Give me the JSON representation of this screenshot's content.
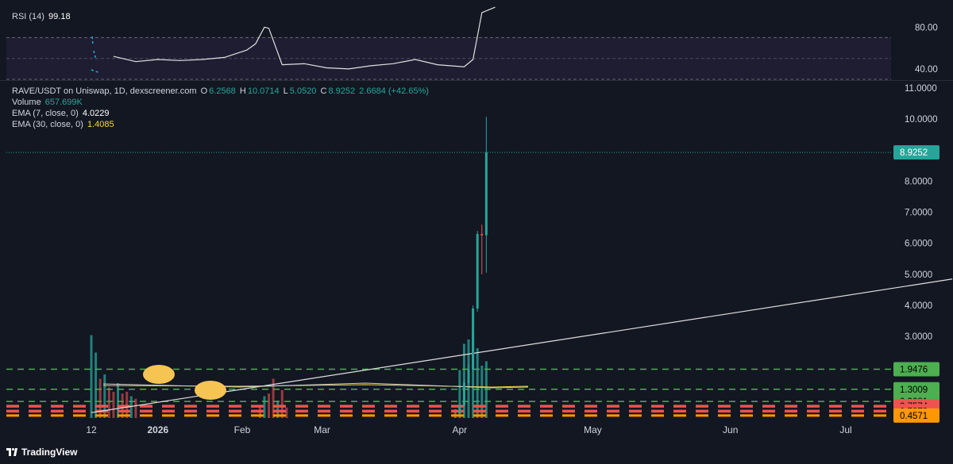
{
  "rsi_legend": {
    "label": "RSI (14)",
    "value": "99.18"
  },
  "main_legend": {
    "symbol": "RAVE/USDT on Uniswap, 1D, dexscreener.com",
    "o_key": "O",
    "o": "6.2568",
    "h_key": "H",
    "h": "10.0714",
    "l_key": "L",
    "l": "5.0520",
    "c_key": "C",
    "c": "8.9252",
    "change": "2.6684 (+42.65%)"
  },
  "volume_legend": {
    "label": "Volume",
    "value": "657.699K"
  },
  "ema7_legend": {
    "label": "EMA (7, close, 0)",
    "value": "4.0229"
  },
  "ema30_legend": {
    "label": "EMA (30, close, 0)",
    "value": "1.4085"
  },
  "chart_data": [
    {
      "type": "line",
      "name": "RSI (14)",
      "ylim": [
        30,
        100
      ],
      "y_ticks": [
        "80.00",
        "40.00"
      ],
      "bands": [
        70,
        50,
        30
      ],
      "x": [
        "2026-01-17",
        "2026-01-22",
        "2026-01-27",
        "2026-02-01",
        "2026-02-06",
        "2026-02-11",
        "2026-02-16",
        "2026-02-18",
        "2026-02-20",
        "2026-02-21",
        "2026-02-24",
        "2026-03-01",
        "2026-03-06",
        "2026-03-11",
        "2026-03-16",
        "2026-03-21",
        "2026-03-26",
        "2026-03-31",
        "2026-04-06",
        "2026-04-08",
        "2026-04-10",
        "2026-04-13"
      ],
      "values": [
        52,
        47,
        49,
        48,
        49,
        51,
        58,
        64,
        80,
        79,
        44,
        45,
        41,
        40,
        43,
        45,
        49,
        44,
        42,
        49,
        94,
        99.18
      ]
    },
    {
      "type": "candlestick",
      "name": "RAVE/USDT",
      "ylim": [
        0.3,
        11.2
      ],
      "y_ticks": [
        "11.0000",
        "10.0000",
        "9.0000",
        "8.0000",
        "7.0000",
        "6.0000",
        "5.0000",
        "4.0000",
        "3.0000"
      ],
      "x_ticks": [
        "12",
        "2026",
        "Feb",
        "Mar",
        "Apr",
        "May",
        "Jun",
        "Jul"
      ],
      "candles": [
        {
          "date": "2026-04-05",
          "open": 0.52,
          "high": 0.8,
          "low": 0.5,
          "close": 0.78
        },
        {
          "date": "2026-04-06",
          "open": 0.78,
          "high": 1.6,
          "low": 0.75,
          "close": 1.5
        },
        {
          "date": "2026-04-07",
          "open": 1.5,
          "high": 2.1,
          "low": 1.4,
          "close": 1.95
        },
        {
          "date": "2026-04-08",
          "open": 1.95,
          "high": 4.0,
          "low": 1.9,
          "close": 3.9
        },
        {
          "date": "2026-04-09",
          "open": 3.9,
          "high": 6.4,
          "low": 3.8,
          "close": 6.3
        },
        {
          "date": "2026-04-10",
          "open": 6.3,
          "high": 6.6,
          "low": 5.0,
          "close": 6.2568
        },
        {
          "date": "2026-04-11",
          "open": 6.2568,
          "high": 10.0714,
          "low": 5.052,
          "close": 8.9252
        }
      ],
      "trendline": {
        "from": {
          "date": "2026-01-12",
          "value": 0.55
        },
        "to": {
          "date": "2026-07-25",
          "value": 4.85
        }
      },
      "price_levels": [
        {
          "label": "8.9252",
          "value": 8.9252,
          "style": "current",
          "color": "#26a69a"
        },
        {
          "label": "1.9476",
          "value": 1.9476,
          "style": "dashed",
          "color": "#4caf50"
        },
        {
          "label": "1.3009",
          "value": 1.3009,
          "style": "dashed",
          "color": "#4caf50"
        },
        {
          "label": "0.9081",
          "value": 0.9081,
          "style": "dashed",
          "color": "#4caf50"
        },
        {
          "label": "0.7574",
          "value": 0.7574,
          "style": "block",
          "color": "#ef5350"
        },
        {
          "label": "0.5973",
          "value": 0.5973,
          "style": "block",
          "color": "#ef5350"
        },
        {
          "label": "0.4571",
          "value": 0.4571,
          "style": "dashed-orange",
          "color": "#ff9800"
        }
      ],
      "volume": [
        {
          "date": "2026-01-12",
          "value": 0.95,
          "dir": "up"
        },
        {
          "date": "2026-01-13",
          "value": 0.75,
          "dir": "up"
        },
        {
          "date": "2026-01-14",
          "value": 0.45,
          "dir": "down"
        },
        {
          "date": "2026-01-15",
          "value": 0.5,
          "dir": "up"
        },
        {
          "date": "2026-01-16",
          "value": 0.35,
          "dir": "down"
        },
        {
          "date": "2026-01-17",
          "value": 0.3,
          "dir": "down"
        },
        {
          "date": "2026-01-18",
          "value": 0.4,
          "dir": "up"
        },
        {
          "date": "2026-01-19",
          "value": 0.28,
          "dir": "down"
        },
        {
          "date": "2026-01-20",
          "value": 0.3,
          "dir": "down"
        },
        {
          "date": "2026-01-21",
          "value": 0.25,
          "dir": "up"
        },
        {
          "date": "2026-01-22",
          "value": 0.22,
          "dir": "down"
        },
        {
          "date": "2026-02-19",
          "value": 0.15,
          "dir": "down"
        },
        {
          "date": "2026-02-20",
          "value": 0.25,
          "dir": "up"
        },
        {
          "date": "2026-02-21",
          "value": 0.28,
          "dir": "down"
        },
        {
          "date": "2026-02-22",
          "value": 0.45,
          "dir": "down"
        },
        {
          "date": "2026-02-23",
          "value": 0.2,
          "dir": "up"
        },
        {
          "date": "2026-02-24",
          "value": 0.32,
          "dir": "down"
        },
        {
          "date": "2026-02-25",
          "value": 0.12,
          "dir": "down"
        },
        {
          "date": "2026-04-04",
          "value": 0.1,
          "dir": "up"
        },
        {
          "date": "2026-04-05",
          "value": 0.55,
          "dir": "up"
        },
        {
          "date": "2026-04-06",
          "value": 0.85,
          "dir": "up"
        },
        {
          "date": "2026-04-07",
          "value": 0.9,
          "dir": "up"
        },
        {
          "date": "2026-04-08",
          "value": 1.0,
          "dir": "up"
        },
        {
          "date": "2026-04-09",
          "value": 0.8,
          "dir": "up"
        },
        {
          "date": "2026-04-10",
          "value": 0.6,
          "dir": "up"
        },
        {
          "date": "2026-04-11",
          "value": 0.65,
          "dir": "up"
        }
      ]
    }
  ],
  "footer": {
    "brand": "TradingView"
  }
}
